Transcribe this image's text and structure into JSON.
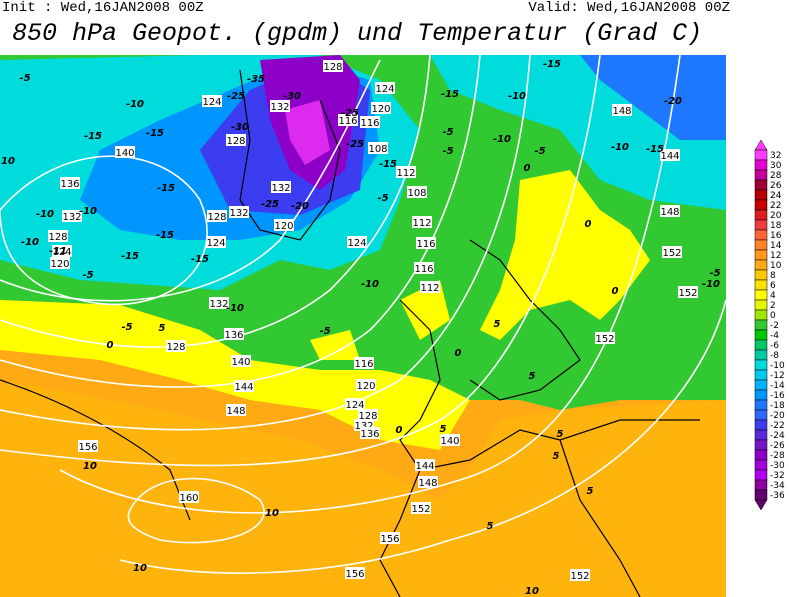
{
  "header": {
    "init": "Init : Wed,16JAN2008 00Z",
    "valid": "Valid: Wed,16JAN2008 00Z",
    "title": "850 hPa Geopot. (gpdm) und Temperatur (Grad C)"
  },
  "colorbar": {
    "ticks": [
      32,
      30,
      28,
      26,
      24,
      22,
      20,
      18,
      16,
      14,
      12,
      10,
      8,
      6,
      4,
      2,
      0,
      -2,
      -4,
      -6,
      -8,
      -10,
      -12,
      -14,
      -16,
      -18,
      -20,
      -22,
      -24,
      -26,
      -28,
      -30,
      -32,
      -34,
      -36
    ],
    "colors": [
      "#ff3cff",
      "#e600d2",
      "#c8009b",
      "#a00032",
      "#b40000",
      "#c80000",
      "#dc1e1e",
      "#f03c3c",
      "#ff6432",
      "#ff8228",
      "#ff961e",
      "#ffaa14",
      "#ffc800",
      "#ffe100",
      "#ffff00",
      "#e6f500",
      "#a0e600",
      "#32c832",
      "#00c800",
      "#00c864",
      "#00c8a0",
      "#00dcdc",
      "#00c8f0",
      "#00b4ff",
      "#0096ff",
      "#1e78ff",
      "#3264ff",
      "#3c3cf0",
      "#5a28dc",
      "#7814c8",
      "#8c00c8",
      "#a000dc",
      "#b400f0",
      "#8c00a0",
      "#64006e"
    ]
  },
  "map": {
    "geopotential_labels": [
      "128",
      "124",
      "128",
      "132",
      "120",
      "124",
      "116",
      "108",
      "112",
      "108",
      "132",
      "140",
      "136",
      "132",
      "128",
      "124",
      "120",
      "148",
      "144",
      "148",
      "152",
      "152",
      "152",
      "112",
      "116",
      "116",
      "112",
      "124",
      "120",
      "124",
      "128",
      "132",
      "132",
      "136",
      "140",
      "144",
      "148",
      "128",
      "116",
      "120",
      "124",
      "128",
      "132",
      "136",
      "140",
      "144",
      "148",
      "152",
      "156",
      "156",
      "152",
      "156",
      "160",
      "116"
    ],
    "temperature_labels": [
      "-5",
      "-10",
      "-15",
      "-15",
      "10",
      "-15",
      "-10",
      "-10",
      "-15",
      "-10",
      "-11",
      "-5",
      "-15",
      "-15",
      "-10",
      "-5",
      "5",
      "0",
      "-25",
      "-30",
      "-35",
      "-30",
      "-25",
      "-25",
      "-20",
      "-25",
      "-15",
      "-10",
      "-15",
      "-20",
      "-10",
      "-15",
      "-5",
      "-5",
      "-5",
      "-10",
      "-15",
      "0",
      "0",
      "0",
      "5",
      "0",
      "5",
      "0",
      "-5",
      "-10",
      "5",
      "5",
      "5",
      "5",
      "5",
      "10",
      "10",
      "10",
      "10",
      "-5",
      "-10",
      "-5"
    ]
  }
}
